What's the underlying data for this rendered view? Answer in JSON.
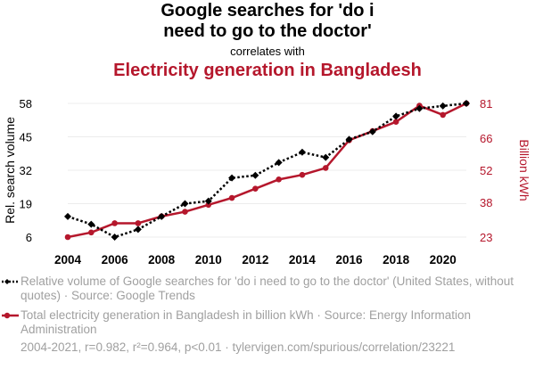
{
  "header": {
    "title_line1": "Google searches for 'do i",
    "title_line2": "need to go to the doctor'",
    "correlates": "correlates with",
    "title2": "Electricity generation in Bangladesh"
  },
  "colors": {
    "series1": "#000000",
    "series2": "#b5172c",
    "legend_text": "#a0a0a0",
    "grid": "#ececec"
  },
  "chart_data": {
    "type": "line",
    "x": [
      2004,
      2005,
      2006,
      2007,
      2008,
      2009,
      2010,
      2011,
      2012,
      2013,
      2014,
      2015,
      2016,
      2017,
      2018,
      2019,
      2020,
      2021
    ],
    "xlim": [
      2004,
      2021
    ],
    "xticks": [
      2004,
      2006,
      2008,
      2010,
      2012,
      2014,
      2016,
      2018,
      2020
    ],
    "grid": true,
    "legend_position": "bottom",
    "series": [
      {
        "name": "Relative volume of Google searches for 'do i need to go to the doctor' (United States, without quotes) · Source: Google Trends",
        "axis": "left",
        "style": "dotted",
        "marker": "diamond",
        "values": [
          14,
          11,
          6,
          9,
          14,
          19,
          20,
          29,
          30,
          35,
          39,
          37,
          44,
          47,
          53,
          56,
          57,
          58
        ]
      },
      {
        "name": "Total electricity generation in Bangladesh in billion kWh · Source: Energy Information Administration",
        "axis": "right",
        "style": "solid",
        "marker": "circle",
        "values": [
          23,
          25,
          29,
          29,
          32,
          34,
          37,
          40,
          44,
          48,
          50,
          53,
          65,
          69,
          73,
          80,
          76,
          81
        ]
      }
    ],
    "y_left": {
      "label": "Rel. search volume",
      "ticks": [
        6,
        19,
        32,
        45,
        58
      ],
      "ylim": [
        6,
        58
      ]
    },
    "y_right": {
      "label": "Billion kWh",
      "ticks": [
        23,
        38,
        52,
        66,
        81
      ],
      "ylim": [
        23,
        81
      ]
    }
  },
  "legend": {
    "item1": "Relative volume of Google searches for 'do i need to go to the doctor' (United States, without quotes) · Source: Google Trends",
    "item2": "Total electricity generation in Bangladesh in billion kWh · Source: Energy Information Administration"
  },
  "footer": "2004-2021, r=0.982, r²=0.964, p<0.01 · tylervigen.com/spurious/correlation/23221"
}
